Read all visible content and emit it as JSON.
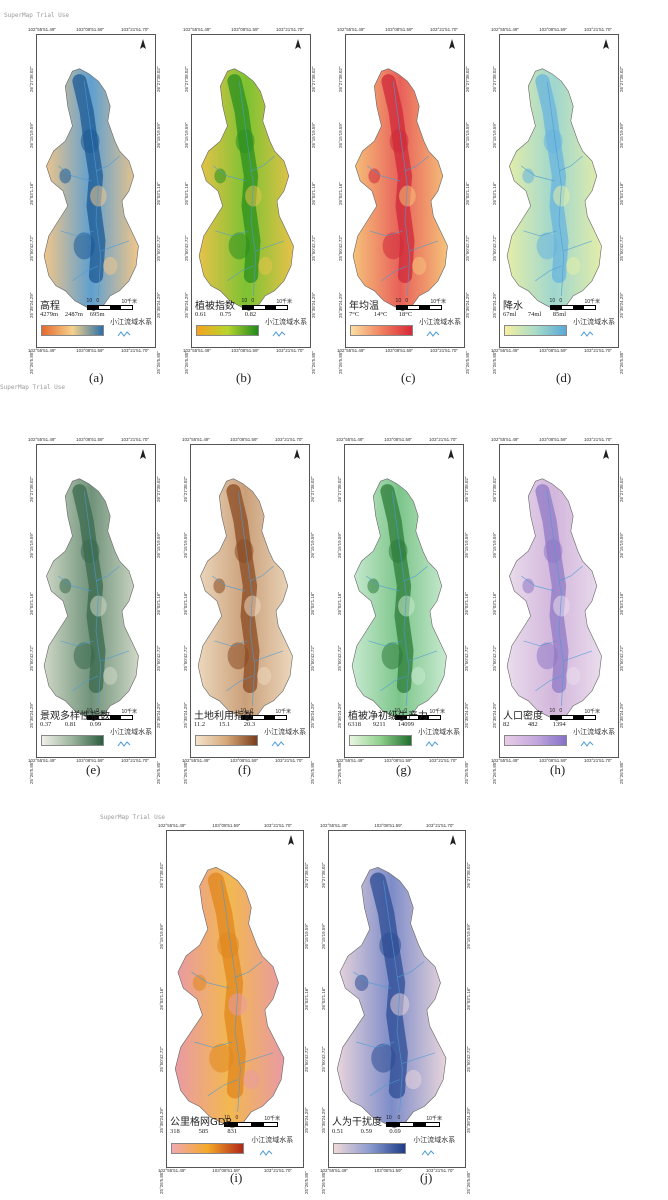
{
  "watermark": "SuperMap Trial Use",
  "coords": {
    "top": [
      "102°55'51.49\"",
      "103°08'51.59\"",
      "103°21'51.70\""
    ],
    "bottom": [
      "102°55'51.49\"",
      "103°08'51.59\"",
      "103°21'51.70\""
    ],
    "left": [
      "26°27'38.02\"",
      "26°15'19.59\"",
      "26°03'1.16\"",
      "25°50'42.72\"",
      "25°38'24.29\"",
      "25°26'5.85\""
    ],
    "right": [
      "26°27'38.02\"",
      "26°15'19.59\"",
      "26°03'1.16\"",
      "25°50'42.72\"",
      "25°38'24.29\"",
      "25°26'5.85\""
    ]
  },
  "scale": {
    "labels": [
      "10",
      "0",
      "10千米"
    ]
  },
  "river_legend": "小江流域水系",
  "panels": [
    {
      "id": "a",
      "label": "(a)",
      "title": "高程",
      "values": [
        "4279m",
        "2487m",
        "695m"
      ],
      "colors": [
        "#e36a2e",
        "#f5d28c",
        "#2a6fa8"
      ],
      "map_colors": [
        "#f1c68a",
        "#5f9fcf",
        "#1d5a94"
      ]
    },
    {
      "id": "b",
      "label": "(b)",
      "title": "植被指数",
      "values": [
        "0.61",
        "0.75",
        "0.82"
      ],
      "colors": [
        "#f4a21e",
        "#b8d42e",
        "#1f8a1c"
      ],
      "map_colors": [
        "#e7c24a",
        "#7cc232",
        "#2b8f1f"
      ]
    },
    {
      "id": "c",
      "label": "(c)",
      "title": "年均温",
      "values": [
        "7°C",
        "14°C",
        "18°C"
      ],
      "colors": [
        "#fbe0a0",
        "#f08060",
        "#d82838"
      ],
      "map_colors": [
        "#f5c27a",
        "#e8605a",
        "#cf2a3a"
      ]
    },
    {
      "id": "d",
      "label": "(d)",
      "title": "降水",
      "values": [
        "67ml",
        "74ml",
        "85ml"
      ],
      "colors": [
        "#f6f0a0",
        "#a8dcc8",
        "#5aa8d8"
      ],
      "map_colors": [
        "#e4eea8",
        "#9fd6cf",
        "#6ab4de"
      ]
    },
    {
      "id": "e",
      "label": "(e)",
      "title": "景观多样性指数",
      "values": [
        "0.37",
        "0.81",
        "0.99"
      ],
      "colors": [
        "#f0f0ea",
        "#9ab39c",
        "#2c5e40"
      ],
      "map_colors": [
        "#cfd8c6",
        "#6f927a",
        "#3b6a4e"
      ]
    },
    {
      "id": "f",
      "label": "(f)",
      "title": "土地利用指数",
      "values": [
        "11.2",
        "15.1",
        "20.3"
      ],
      "colors": [
        "#f3e4cc",
        "#d6a878",
        "#7a3c1a"
      ],
      "map_colors": [
        "#ecd7bc",
        "#caa07a",
        "#8a4a22"
      ]
    },
    {
      "id": "g",
      "label": "(g)",
      "title": "植被净初级生产力",
      "values": [
        "6318",
        "9211",
        "14099"
      ],
      "colors": [
        "#e8f6e0",
        "#8fd08c",
        "#1f6e2c"
      ],
      "map_colors": [
        "#c8ead0",
        "#7cc58a",
        "#2d7c3a"
      ]
    },
    {
      "id": "h",
      "label": "(h)",
      "title": "人口密度",
      "values": [
        "82",
        "482",
        "1394"
      ],
      "colors": [
        "#e8cce8",
        "#c4a8dc",
        "#8470c8"
      ],
      "map_colors": [
        "#eadcec",
        "#d2b6dc",
        "#8f79c6"
      ]
    },
    {
      "id": "i",
      "label": "(i)",
      "title": "公里格网GDP",
      "values": [
        "318",
        "585",
        "831"
      ],
      "colors": [
        "#f0a8b0",
        "#f5a828",
        "#b02818"
      ],
      "map_colors": [
        "#e99aa4",
        "#f2b850",
        "#e0861e"
      ]
    },
    {
      "id": "j",
      "label": "(j)",
      "title": "人为干扰度",
      "values": [
        "0.51",
        "0.59",
        "0.69"
      ],
      "colors": [
        "#f0d8d8",
        "#8c9cd0",
        "#1e3c88"
      ],
      "map_colors": [
        "#e8d4dc",
        "#7c8cc8",
        "#2e4c94"
      ]
    }
  ]
}
